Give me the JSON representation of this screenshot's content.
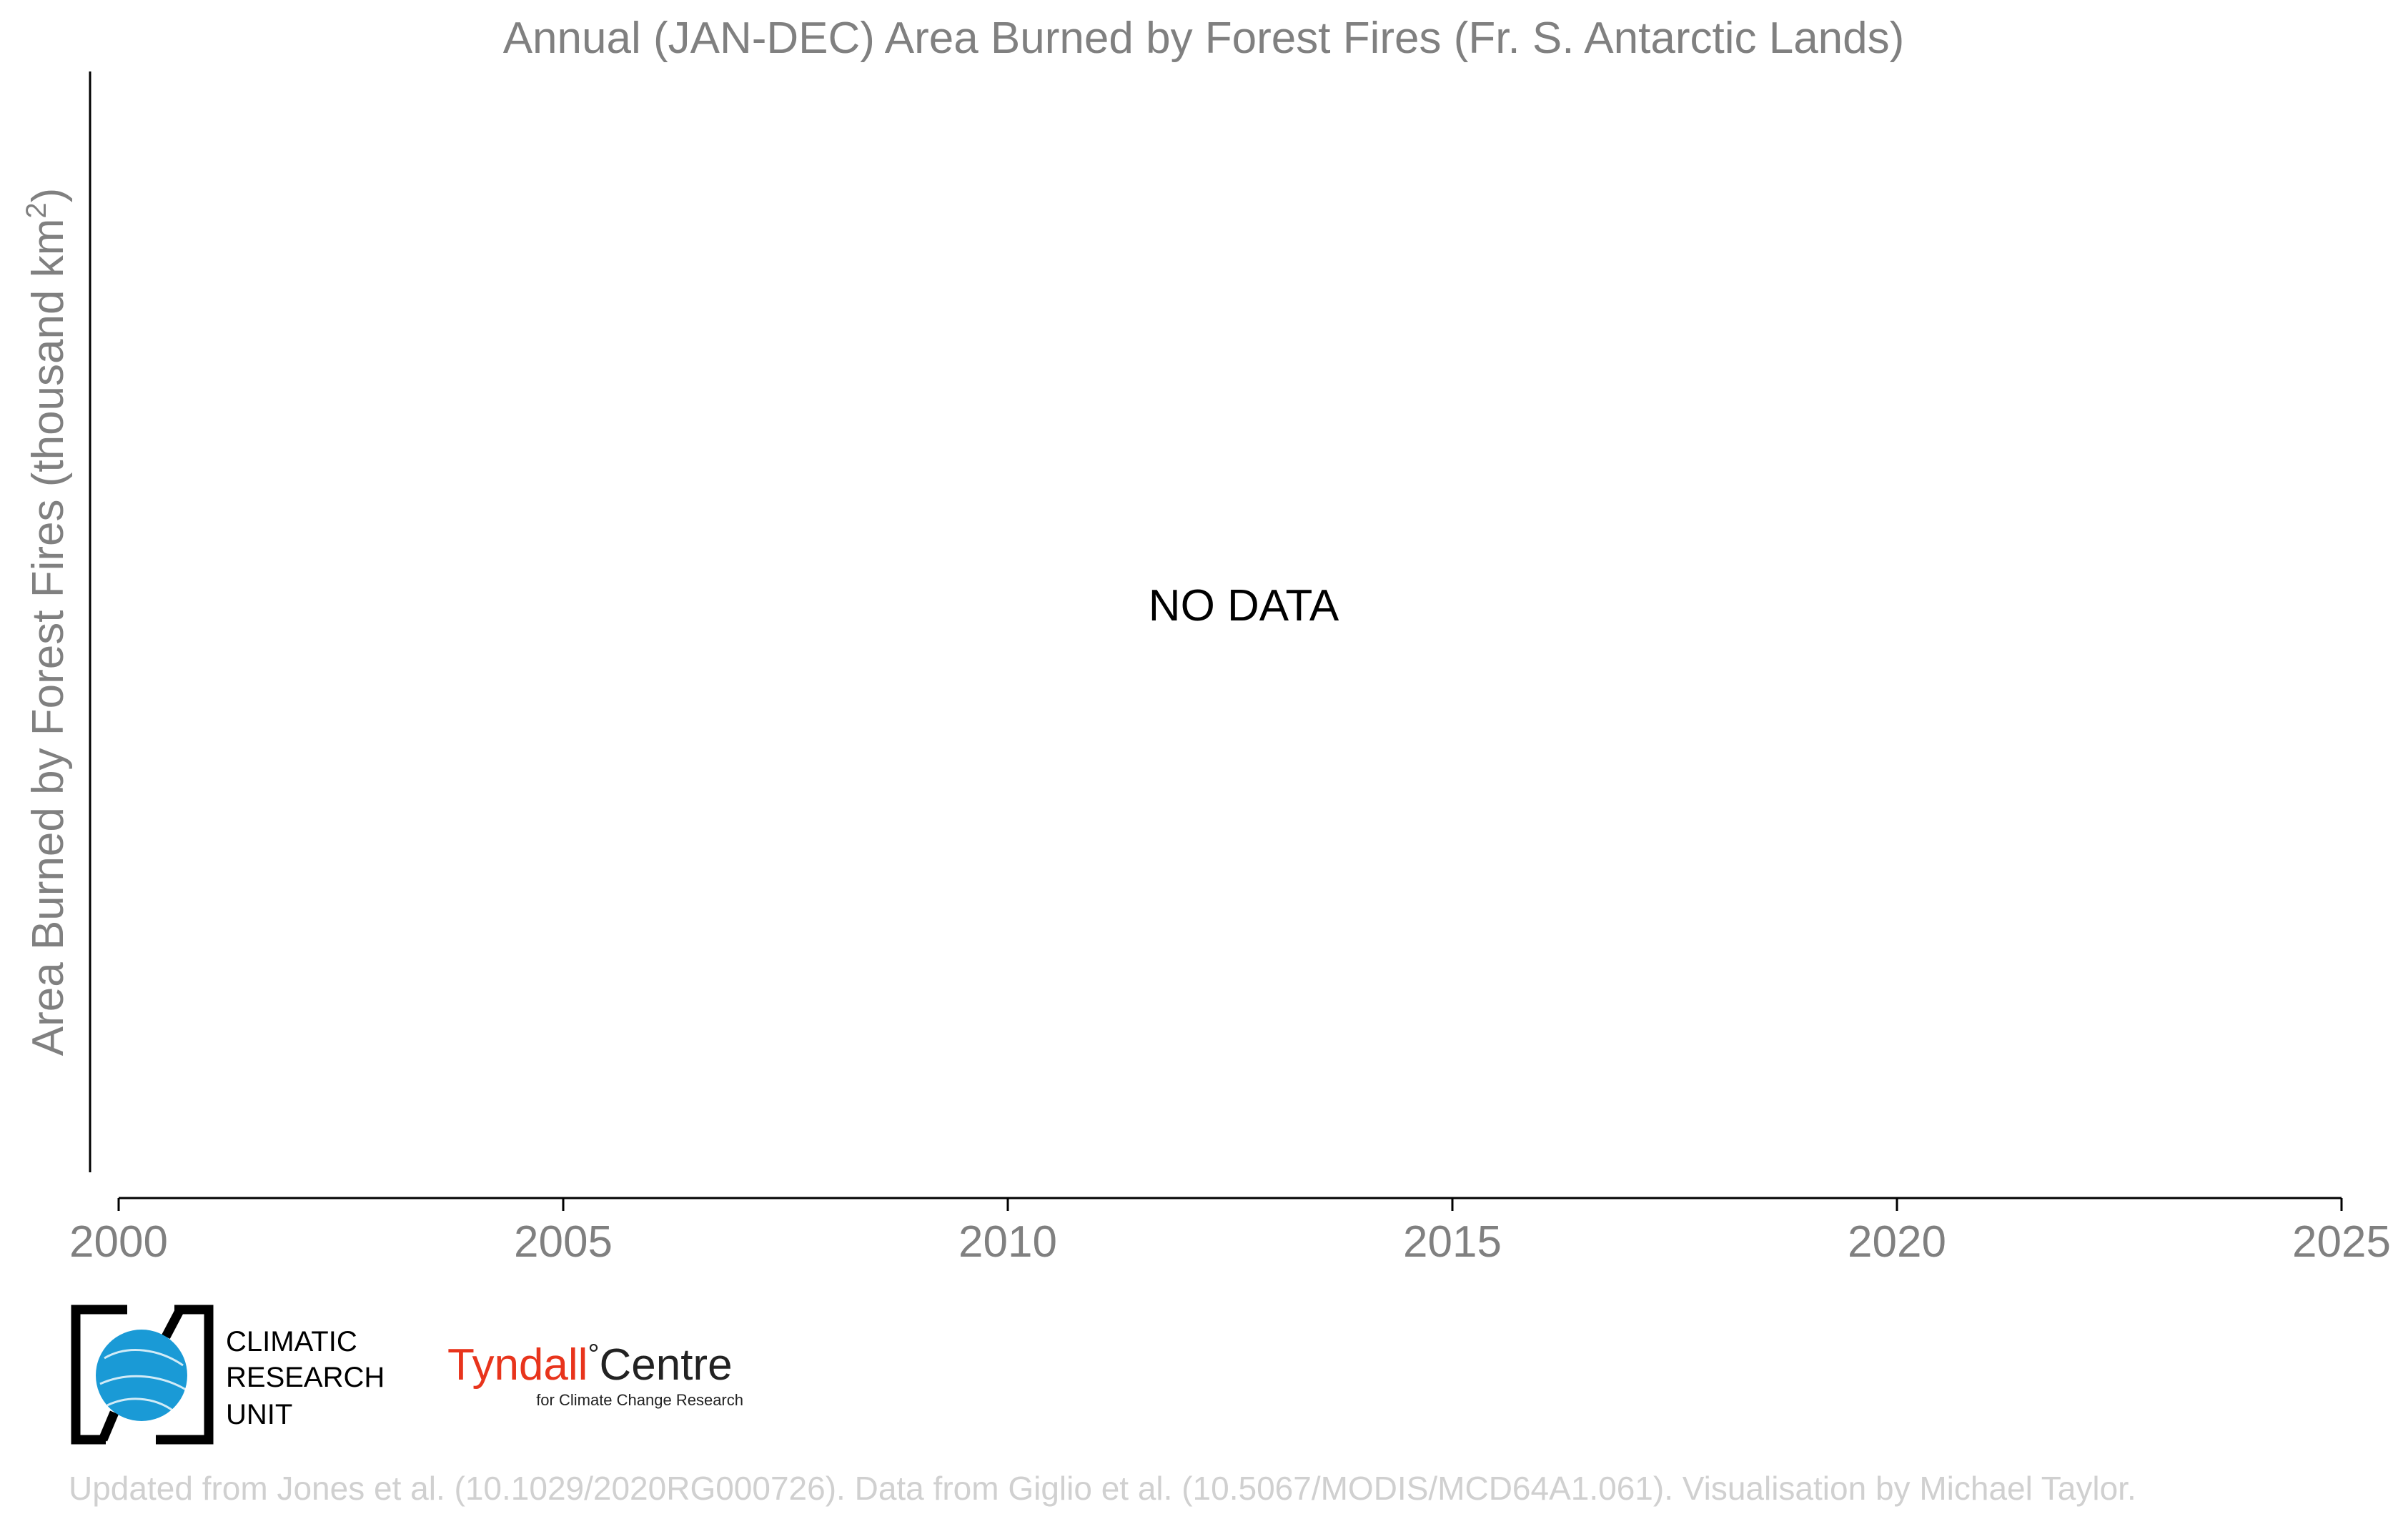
{
  "chart_data": {
    "type": "bar",
    "title": "Annual (JAN-DEC) Area Burned by Forest Fires (Fr. S. Antarctic Lands)",
    "xlabel": "",
    "ylabel_main": "Area Burned by Forest Fires (thousand km",
    "ylabel_sup": "2",
    "ylabel_end": ")",
    "xlim": [
      2000,
      2025
    ],
    "xticks": [
      "2000",
      "2005",
      "2010",
      "2015",
      "2020",
      "2025"
    ],
    "series": [],
    "annotation": "NO DATA",
    "grid": false
  },
  "logos": {
    "cru_line1": "CLIMATIC",
    "cru_line2": "RESEARCH",
    "cru_line3": "UNIT",
    "tyndall_name": "Tyndall",
    "tyndall_degree": "°",
    "tyndall_centre": "Centre",
    "tyndall_sub": "for Climate Change Research"
  },
  "credits": "Updated from Jones et al. (10.1029/2020RG000726). Data from Giglio et al. (10.5067/MODIS/MCD64A1.061). Visualisation by Michael Taylor.",
  "colors": {
    "title": "#808080",
    "axis": "#000000",
    "credits": "#d0d0d0",
    "cru_blue": "#1a9ad6",
    "tyndall_red": "#e8341c"
  }
}
